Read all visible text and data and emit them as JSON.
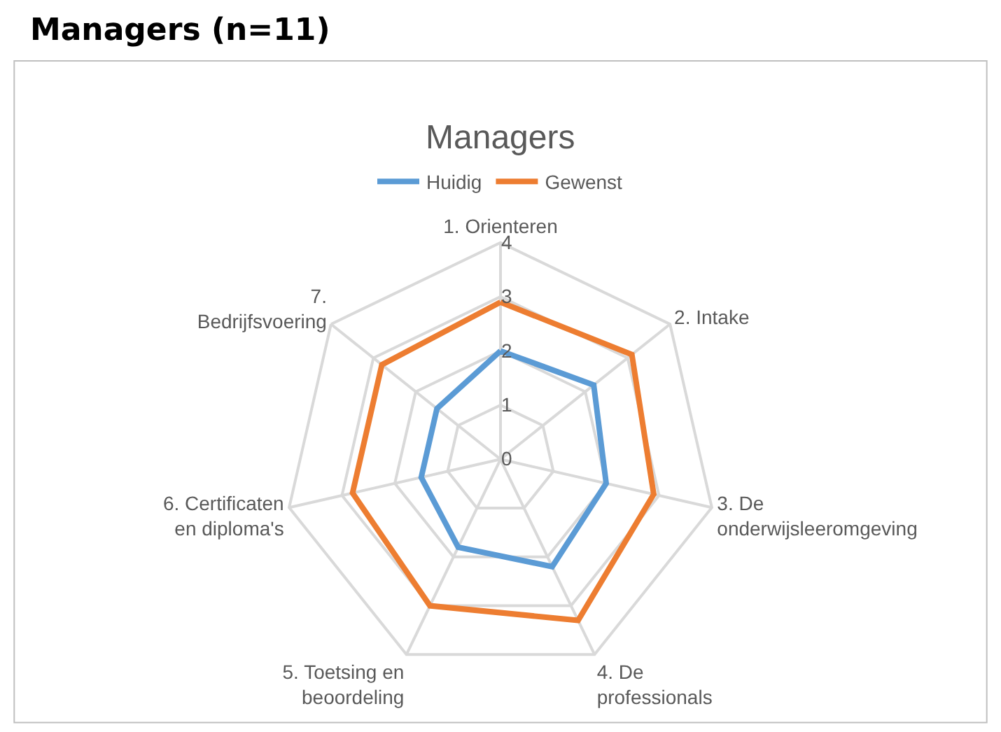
{
  "chart_data": {
    "type": "radar",
    "title": "Managers (n=11)",
    "subtitle": "Managers",
    "categories": [
      "1. Orienteren",
      "2. Intake",
      "3. De onderwijsleeromgeving",
      "4. De professionals",
      "5. Toetsing en beoordeling",
      "6. Certificaten en diploma's",
      "7. Bedrijfsvoering"
    ],
    "series": [
      {
        "name": "Huidig",
        "color": "#5b9bd5",
        "values": [
          2.0,
          2.2,
          2.0,
          2.2,
          1.8,
          1.5,
          1.5
        ]
      },
      {
        "name": "Gewenst",
        "color": "#ed7d31",
        "values": [
          2.9,
          3.1,
          2.9,
          3.3,
          3.0,
          2.8,
          2.8
        ]
      }
    ],
    "ylim": [
      0,
      4
    ],
    "yticks": [
      0,
      1,
      2,
      3,
      4
    ],
    "grid": true,
    "legend": "top",
    "marker": "none",
    "line_style": "solid"
  }
}
